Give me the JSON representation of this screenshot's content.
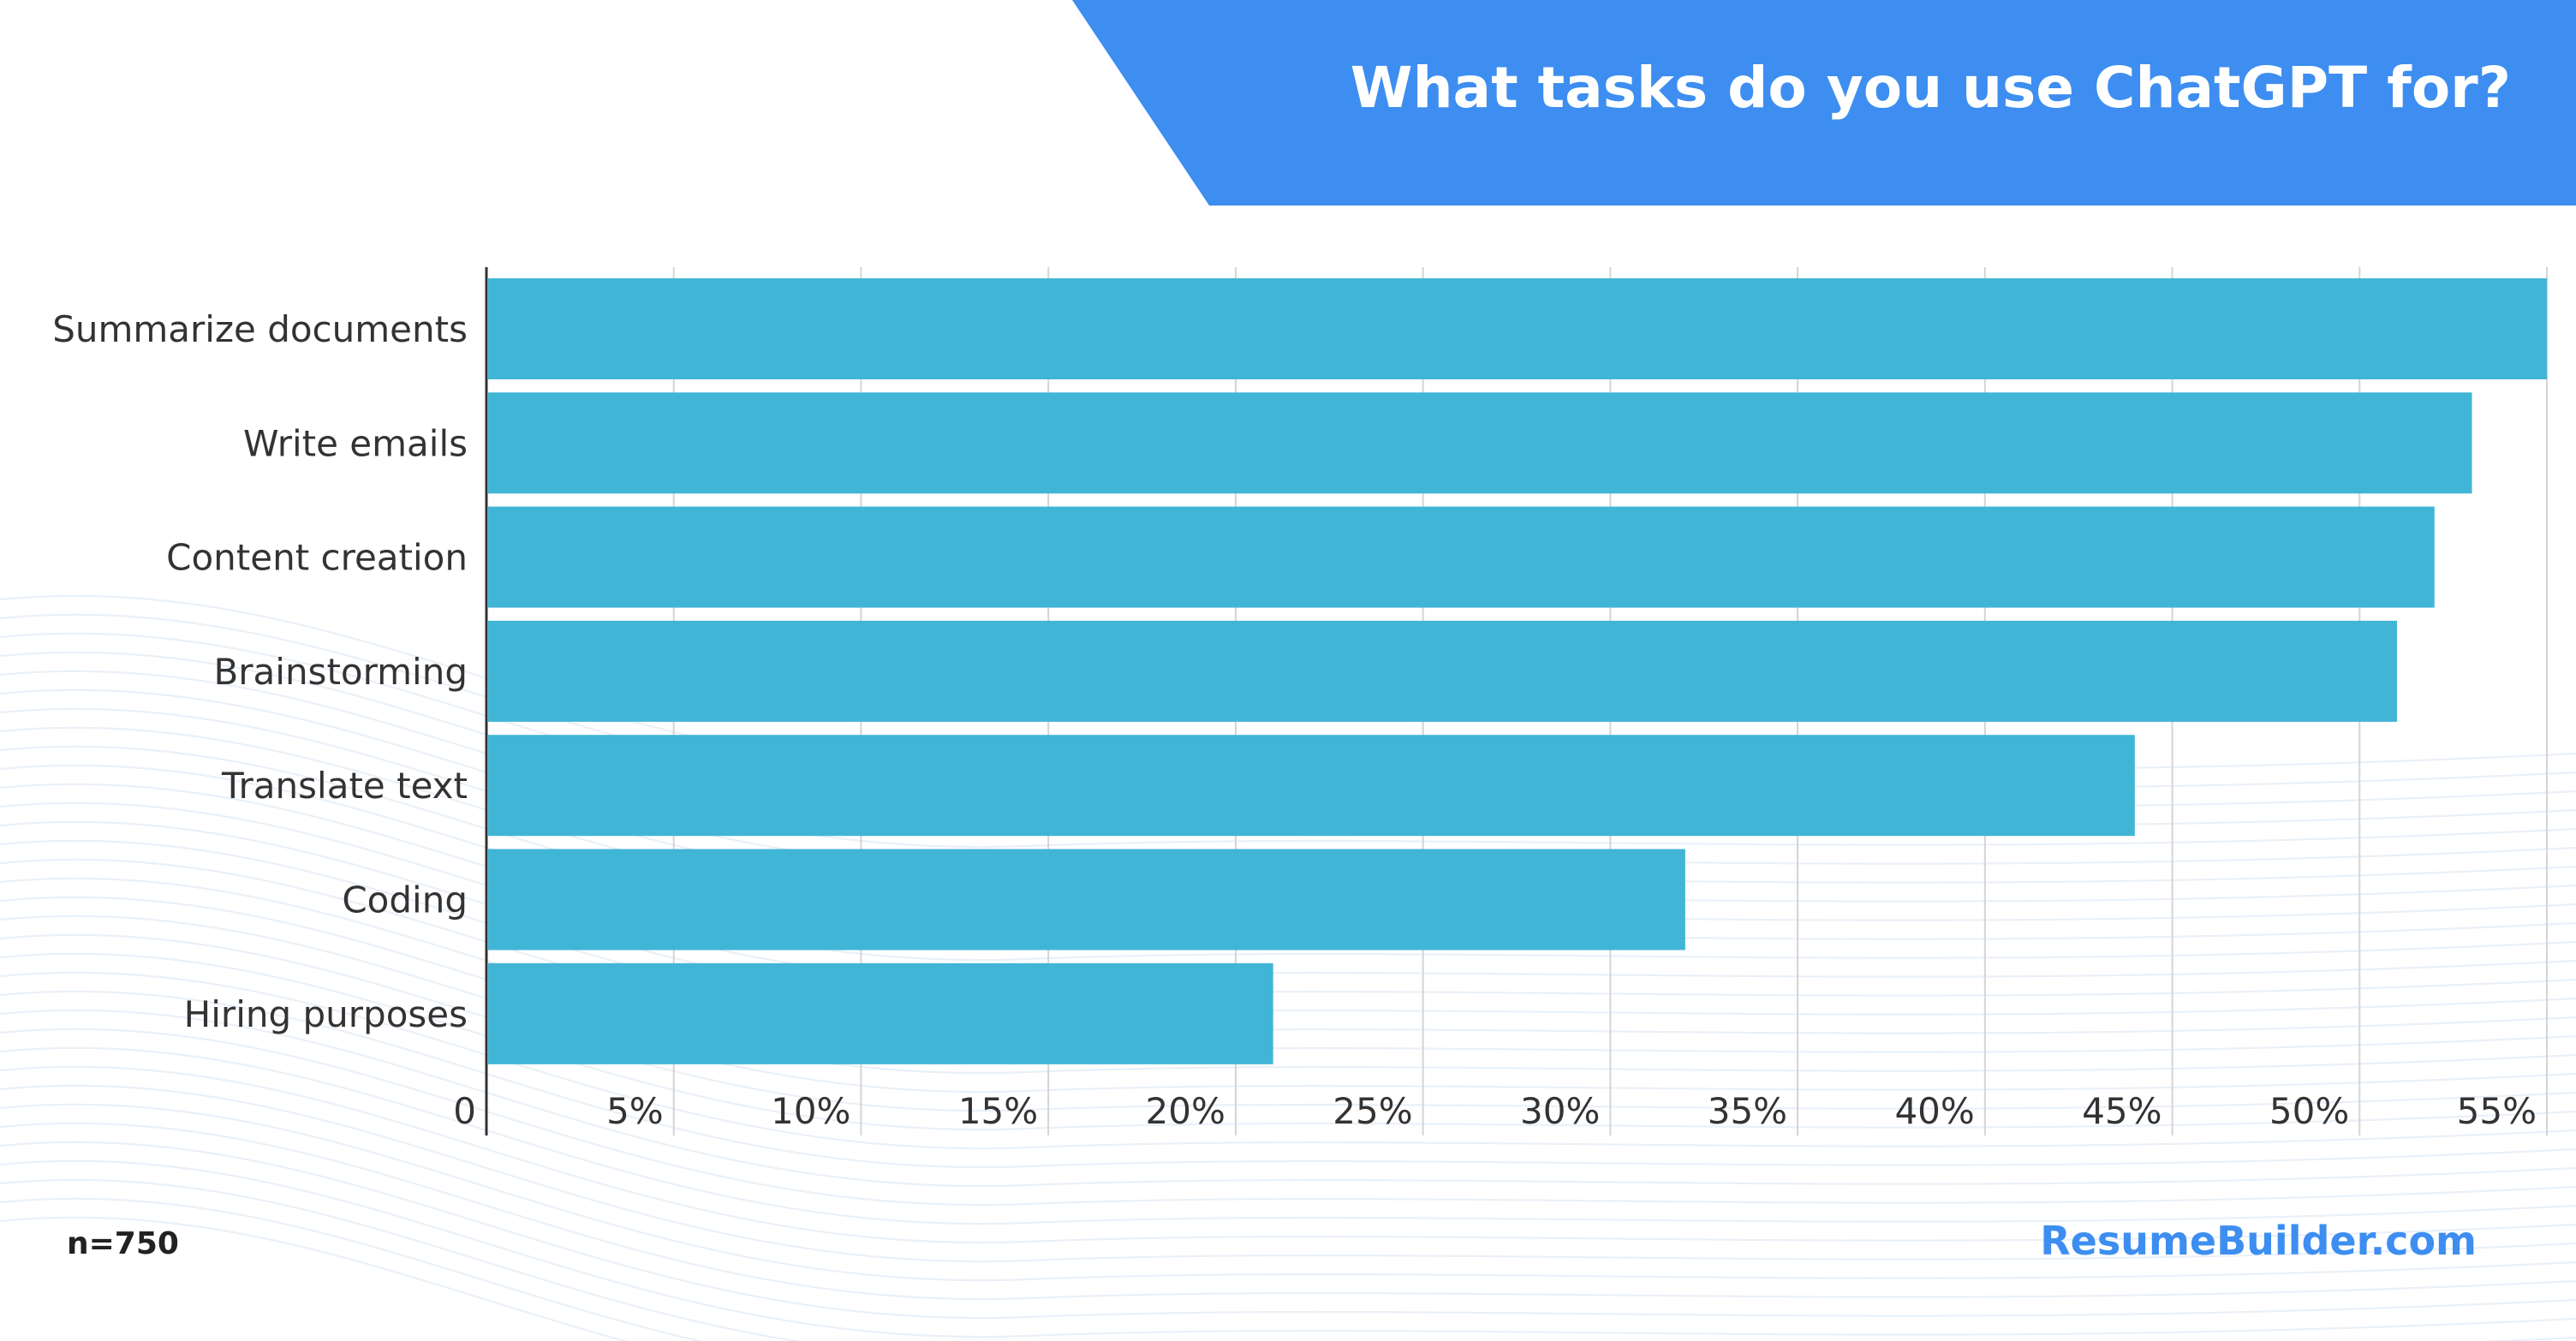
{
  "header": {
    "title": "What tasks do you use ChatGPT for?",
    "banner_color": "#3d8ef0"
  },
  "footer": {
    "sample_size": "n=750",
    "brand": "ResumeBuilder.com"
  },
  "colors": {
    "bar": "#41b5d6",
    "grid": "#d4d4d4",
    "axis": "#333333"
  },
  "chart_data": {
    "type": "bar",
    "orientation": "horizontal",
    "categories": [
      "Summarize documents",
      "Write emails",
      "Content creation",
      "Brainstorming",
      "Translate text",
      "Coding",
      "Hiring purposes"
    ],
    "values": [
      55,
      53,
      52,
      51,
      44,
      32,
      21
    ],
    "unit": "%",
    "xlim": [
      0,
      55
    ],
    "x_ticks": [
      {
        "value": 0,
        "label": "0"
      },
      {
        "value": 5,
        "label": "5%"
      },
      {
        "value": 10,
        "label": "10%"
      },
      {
        "value": 15,
        "label": "15%"
      },
      {
        "value": 20,
        "label": "20%"
      },
      {
        "value": 25,
        "label": "25%"
      },
      {
        "value": 30,
        "label": "30%"
      },
      {
        "value": 35,
        "label": "35%"
      },
      {
        "value": 40,
        "label": "40%"
      },
      {
        "value": 45,
        "label": "45%"
      },
      {
        "value": 50,
        "label": "50%"
      },
      {
        "value": 55,
        "label": "55%"
      }
    ],
    "grid": true,
    "legend": false
  }
}
